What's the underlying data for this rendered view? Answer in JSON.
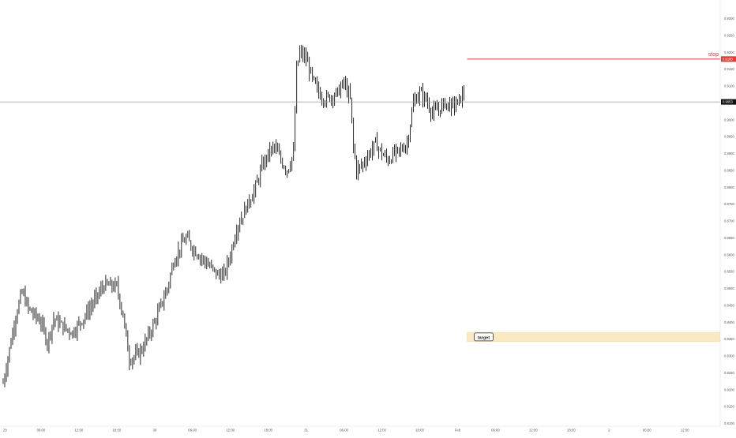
{
  "chart_data": {
    "type": "ohlc",
    "y_axis": {
      "ticks": [
        "0.9350",
        "0.9300",
        "0.9250",
        "0.9200",
        "0.9150",
        "0.9100",
        "0.9050",
        "0.9000",
        "0.8950",
        "0.8900",
        "0.8850",
        "0.8800",
        "0.8750",
        "0.8700",
        "0.8650",
        "0.8600",
        "0.8550",
        "0.8500",
        "0.8450",
        "0.8400",
        "0.8350",
        "0.8300",
        "0.8250",
        "0.8200",
        "0.8150",
        "0.8100"
      ],
      "range": [
        0.8092,
        0.9355
      ]
    },
    "x_axis": {
      "ticks": [
        {
          "label": "29",
          "t": 0
        },
        {
          "label": "06:00",
          "t": 6
        },
        {
          "label": "12:00",
          "t": 12
        },
        {
          "label": "18:00",
          "t": 18
        },
        {
          "label": "30",
          "t": 24
        },
        {
          "label": "06:00",
          "t": 30
        },
        {
          "label": "12:00",
          "t": 36
        },
        {
          "label": "18:00",
          "t": 42
        },
        {
          "label": "31",
          "t": 48
        },
        {
          "label": "06:00",
          "t": 54
        },
        {
          "label": "12:00",
          "t": 60
        },
        {
          "label": "18:00",
          "t": 66
        },
        {
          "label": "Feb",
          "t": 72
        },
        {
          "label": "06:00",
          "t": 78
        },
        {
          "label": "12:00",
          "t": 84
        },
        {
          "label": "18:00",
          "t": 90
        },
        {
          "label": "2",
          "t": 96
        },
        {
          "label": "06:00",
          "t": 102
        },
        {
          "label": "12:00",
          "t": 108
        }
      ],
      "range_hours": [
        -0.5,
        113.6
      ]
    },
    "price_path": [
      [
        0,
        0.822
      ],
      [
        2,
        0.842
      ],
      [
        3,
        0.849
      ],
      [
        4,
        0.844
      ],
      [
        6,
        0.84
      ],
      [
        7,
        0.834
      ],
      [
        8,
        0.841
      ],
      [
        10,
        0.838
      ],
      [
        11,
        0.837
      ],
      [
        13,
        0.842
      ],
      [
        14,
        0.845
      ],
      [
        16,
        0.851
      ],
      [
        18,
        0.8505
      ],
      [
        19,
        0.842
      ],
      [
        20,
        0.829
      ],
      [
        21,
        0.83
      ],
      [
        22,
        0.832
      ],
      [
        23,
        0.836
      ],
      [
        24,
        0.84
      ],
      [
        25,
        0.845
      ],
      [
        26,
        0.85
      ],
      [
        27,
        0.858
      ],
      [
        28,
        0.862
      ],
      [
        29,
        0.865
      ],
      [
        30,
        0.862
      ],
      [
        31,
        0.86
      ],
      [
        32,
        0.858
      ],
      [
        33,
        0.856
      ],
      [
        34,
        0.854
      ],
      [
        35,
        0.854
      ],
      [
        36,
        0.86
      ],
      [
        37,
        0.868
      ],
      [
        38,
        0.872
      ],
      [
        39,
        0.876
      ],
      [
        40,
        0.88
      ],
      [
        41,
        0.886
      ],
      [
        42,
        0.89
      ],
      [
        43,
        0.892
      ],
      [
        44,
        0.888
      ],
      [
        45,
        0.885
      ],
      [
        46,
        0.89
      ],
      [
        46.5,
        0.915
      ],
      [
        47,
        0.92
      ],
      [
        48,
        0.918
      ],
      [
        49,
        0.912
      ],
      [
        50,
        0.908
      ],
      [
        51,
        0.906
      ],
      [
        52,
        0.907
      ],
      [
        53,
        0.908
      ],
      [
        54,
        0.911
      ],
      [
        55,
        0.906
      ],
      [
        55.5,
        0.892
      ],
      [
        56,
        0.885
      ],
      [
        57,
        0.887
      ],
      [
        58,
        0.89
      ],
      [
        59,
        0.893
      ],
      [
        60,
        0.89
      ],
      [
        61,
        0.888
      ],
      [
        62,
        0.89
      ],
      [
        63,
        0.891
      ],
      [
        64,
        0.893
      ],
      [
        65,
        0.905
      ],
      [
        66,
        0.908
      ],
      [
        67,
        0.906
      ],
      [
        68,
        0.902
      ],
      [
        69,
        0.903
      ],
      [
        70,
        0.905
      ],
      [
        71,
        0.904
      ],
      [
        72,
        0.905
      ],
      [
        73,
        0.908
      ]
    ],
    "last_price": 0.9053,
    "annotations": {
      "stop": {
        "label": "stop",
        "price_label": "0.9180",
        "price": 0.918,
        "from_t": 73.5,
        "color": "#e53935"
      },
      "target": {
        "label": "target",
        "from_t": 73.5,
        "price_top": 0.837,
        "price_bottom": 0.8343,
        "color": "#fbe9c3"
      }
    },
    "last_price_label": "0.9053"
  }
}
